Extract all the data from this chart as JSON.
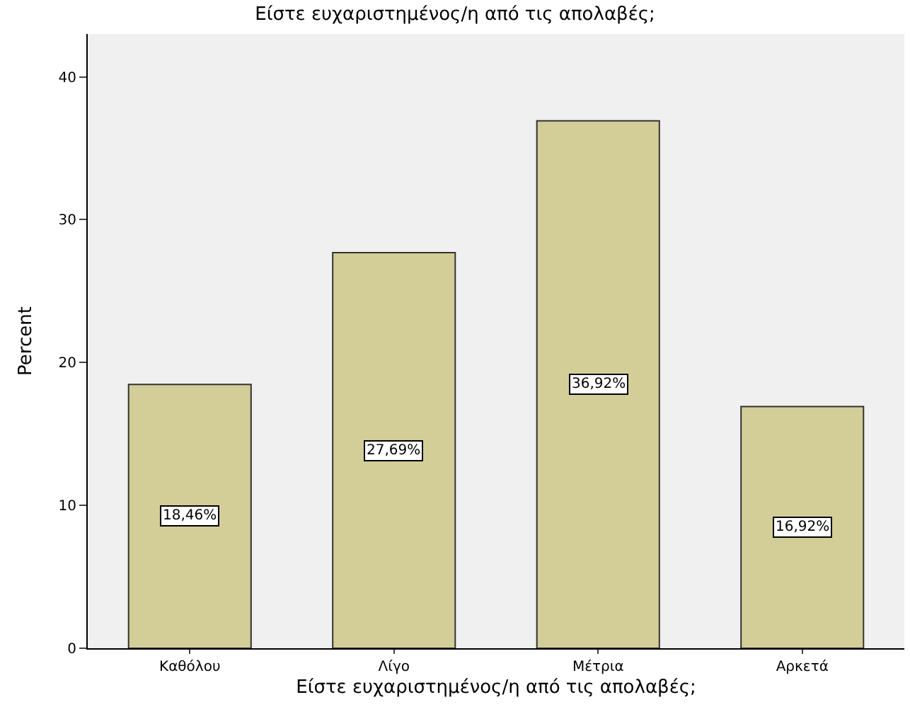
{
  "chart_data": {
    "type": "bar",
    "title": "Είστε ευχαριστημένος/η από τις απολαβές;",
    "xlabel": "Είστε ευχαριστημένος/η από τις απολαβές;",
    "ylabel": "Percent",
    "categories": [
      "Καθόλου",
      "Λίγο",
      "Μέτρια",
      "Αρκετά"
    ],
    "values": [
      18.46,
      27.69,
      36.92,
      16.92
    ],
    "value_labels": [
      "18,46%",
      "27,69%",
      "36,92%",
      "16,92%"
    ],
    "color": "#d3ce97",
    "ylim": [
      0,
      43
    ],
    "yticks": [
      0,
      10,
      20,
      30,
      40
    ],
    "grid": false,
    "legend": false
  }
}
